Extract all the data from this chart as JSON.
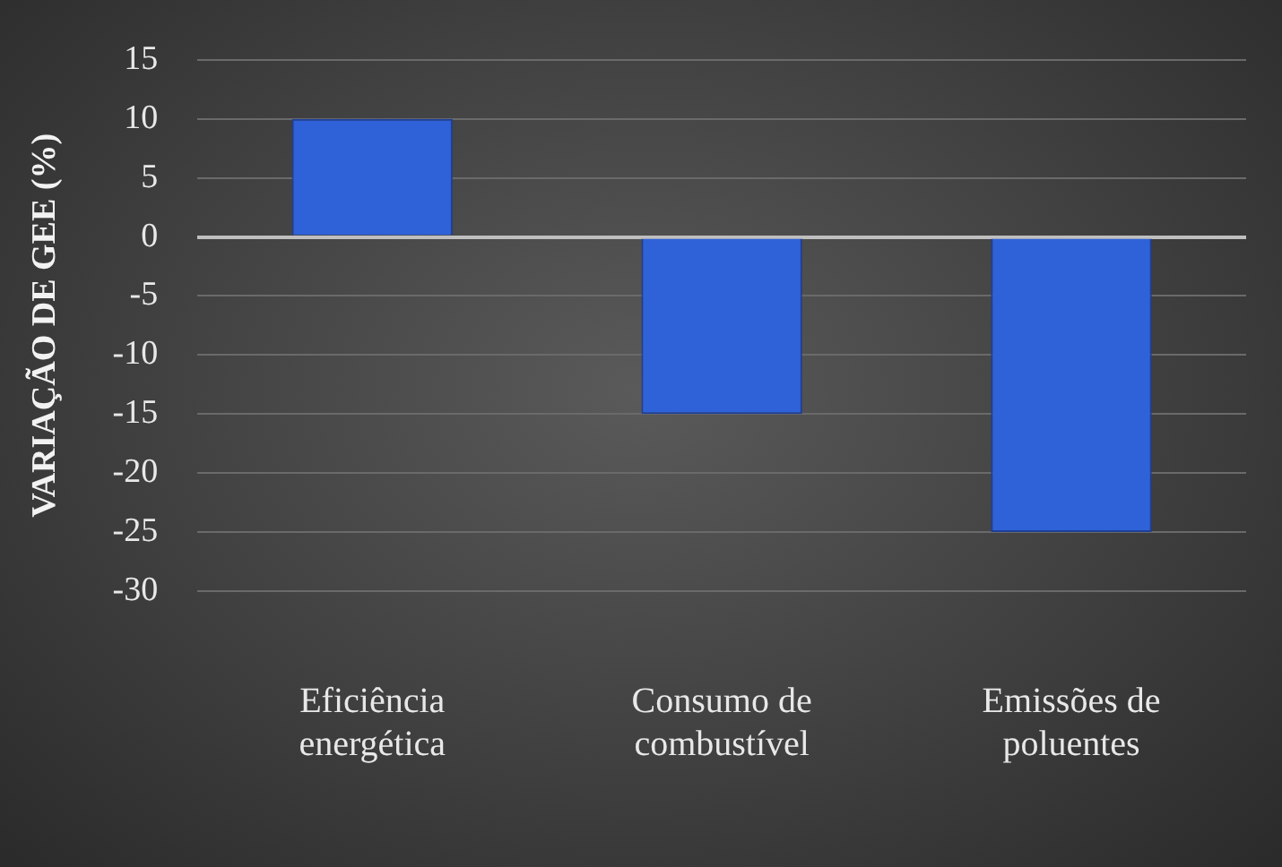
{
  "chart_data": {
    "type": "bar",
    "ylabel": "VARIAÇÃO DE GEE (%)",
    "categories": [
      "Eficiência energética",
      "Consumo de combustível",
      "Emissões de poluentes"
    ],
    "values": [
      10,
      -15,
      -25
    ],
    "color": "#2f62d8",
    "ylim": [
      -30,
      15
    ],
    "yticks": [
      15,
      10,
      5,
      0,
      -5,
      -10,
      -15,
      -20,
      -25,
      -30
    ],
    "grid": "y",
    "legend": false
  }
}
